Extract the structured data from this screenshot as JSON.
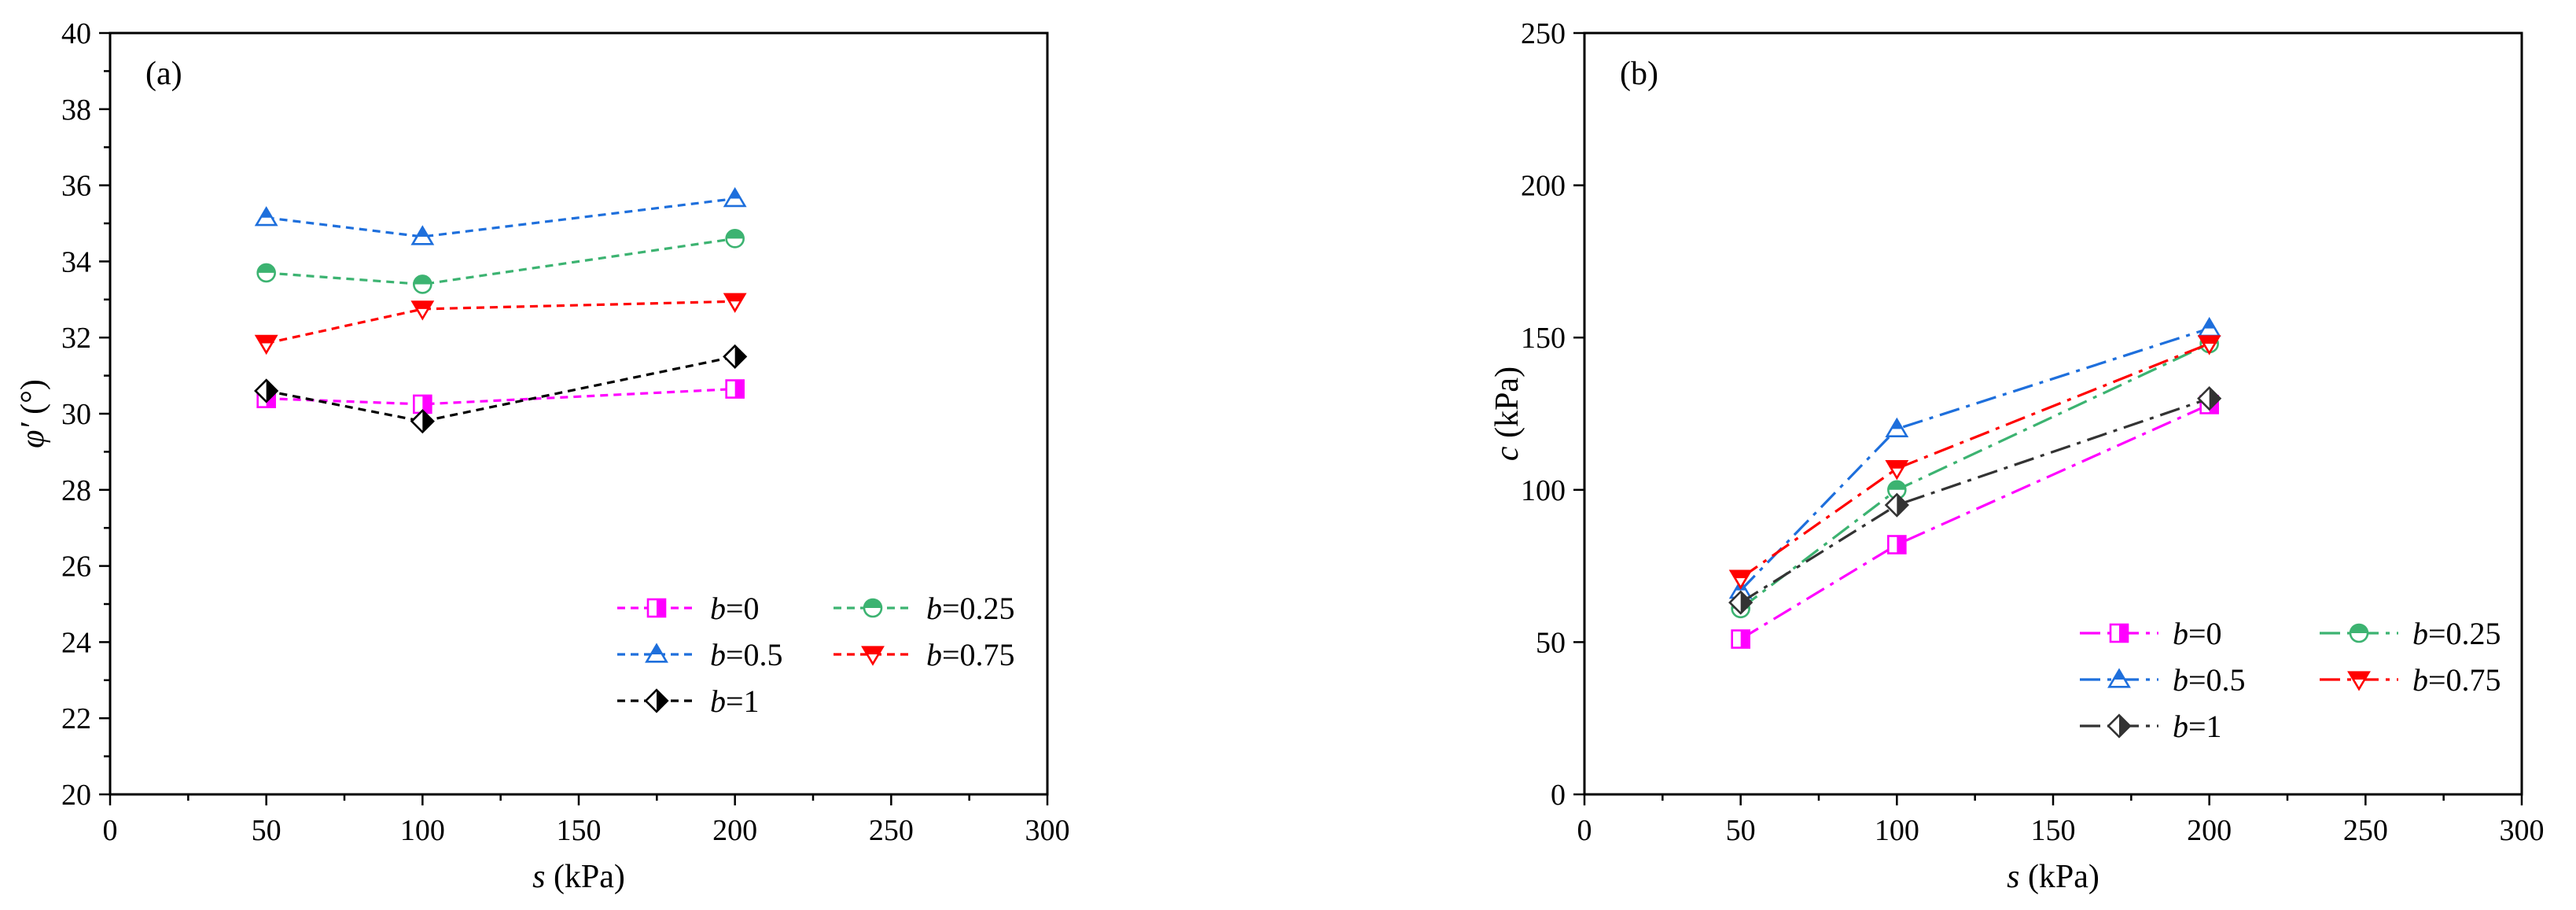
{
  "chart_data": [
    {
      "type": "line",
      "panel_label": "(a)",
      "xlabel": {
        "var": "s",
        "unit": " (kPa)"
      },
      "ylabel": {
        "var": "φ′",
        "unit": " (°)"
      },
      "xlim": [
        0,
        300
      ],
      "ylim": [
        20,
        40
      ],
      "x_ticks": [
        0,
        50,
        100,
        150,
        200,
        250,
        300
      ],
      "y_ticks": [
        20,
        22,
        24,
        26,
        28,
        30,
        32,
        34,
        36,
        38,
        40
      ],
      "x": [
        50,
        100,
        200
      ],
      "line_style": "dashed",
      "legend_position": "bottom-right",
      "series": [
        {
          "name": "b=0",
          "name_var": "b",
          "name_val": "=0",
          "color": "#ff00ff",
          "marker": "square-half",
          "values": [
            30.4,
            30.25,
            30.65
          ]
        },
        {
          "name": "b=0.25",
          "name_var": "b",
          "name_val": "=0.25",
          "color": "#3cb371",
          "marker": "circle-half",
          "values": [
            33.7,
            33.4,
            34.6
          ]
        },
        {
          "name": "b=0.5",
          "name_var": "b",
          "name_val": "=0.5",
          "color": "#1e6fdc",
          "marker": "triangle-up-half",
          "values": [
            35.15,
            34.65,
            35.65
          ]
        },
        {
          "name": "b=0.75",
          "name_var": "b",
          "name_val": "=0.75",
          "color": "#ff0000",
          "marker": "triangle-down-half",
          "values": [
            31.85,
            32.75,
            32.95
          ]
        },
        {
          "name": "b=1",
          "name_var": "b",
          "name_val": "=1",
          "color": "#000000",
          "marker": "diamond-half",
          "values": [
            30.6,
            29.8,
            31.5
          ]
        }
      ]
    },
    {
      "type": "line",
      "panel_label": "(b)",
      "xlabel": {
        "var": "s",
        "unit": " (kPa)"
      },
      "ylabel": {
        "var": "c",
        "unit": " (kPa)"
      },
      "xlim": [
        0,
        300
      ],
      "ylim": [
        0,
        250
      ],
      "x_ticks": [
        0,
        50,
        100,
        150,
        200,
        250,
        300
      ],
      "y_ticks": [
        0,
        50,
        100,
        150,
        200,
        250
      ],
      "x": [
        50,
        100,
        200
      ],
      "line_style": "dash-dot",
      "legend_position": "bottom-right",
      "series": [
        {
          "name": "b=0",
          "name_var": "b",
          "name_val": "=0",
          "color": "#ff00ff",
          "marker": "square-half",
          "values": [
            51,
            82,
            128
          ]
        },
        {
          "name": "b=0.25",
          "name_var": "b",
          "name_val": "=0.25",
          "color": "#3cb371",
          "marker": "circle-half",
          "values": [
            61,
            100,
            148
          ]
        },
        {
          "name": "b=0.5",
          "name_var": "b",
          "name_val": "=0.5",
          "color": "#1e6fdc",
          "marker": "triangle-up-half",
          "values": [
            67,
            120,
            153
          ]
        },
        {
          "name": "b=0.75",
          "name_var": "b",
          "name_val": "=0.75",
          "color": "#ff0000",
          "marker": "triangle-down-half",
          "values": [
            71,
            107,
            148
          ]
        },
        {
          "name": "b=1",
          "name_var": "b",
          "name_val": "=1",
          "color": "#333333",
          "marker": "diamond-half",
          "values": [
            63,
            95,
            130
          ]
        }
      ]
    }
  ]
}
